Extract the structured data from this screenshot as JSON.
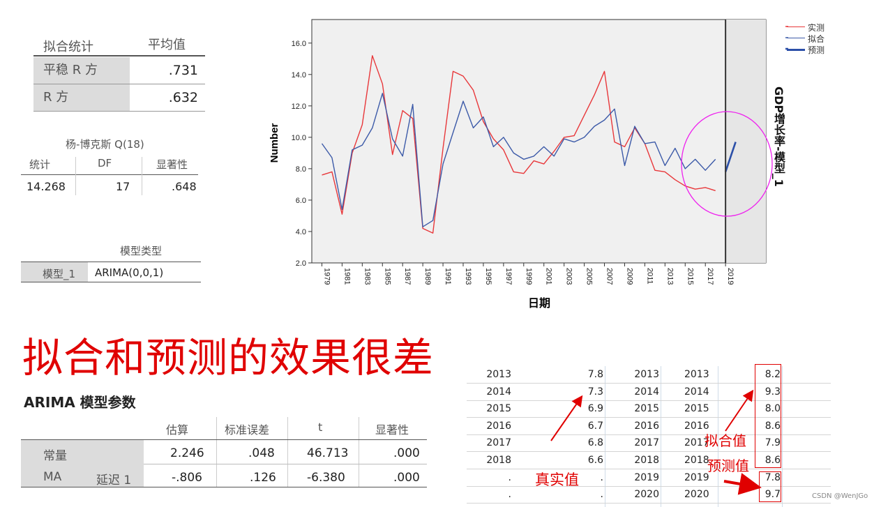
{
  "fit_stats": {
    "header_label": "拟合统计",
    "header_value": "平均值",
    "rows": [
      {
        "label": "平稳 R 方",
        "value": ".731"
      },
      {
        "label": "R 方",
        "value": ".632"
      }
    ]
  },
  "ljung_box": {
    "title": "杨-博克斯 Q(18)",
    "headers": [
      "统计",
      "DF",
      "显著性"
    ],
    "values": [
      "14.268",
      "17",
      ".648"
    ]
  },
  "model_type": {
    "header": "模型类型",
    "model": "模型_1",
    "type": "ARIMA(0,0,1)"
  },
  "headline": "拟合和预测的效果很差",
  "arima_params": {
    "title": "ARIMA 模型参数",
    "headers": [
      "估算",
      "标准误差",
      "t",
      "显著性"
    ],
    "rows": [
      {
        "label": "常量",
        "sub": "",
        "values": [
          "2.246",
          ".048",
          "46.713",
          ".000"
        ]
      },
      {
        "label": "MA",
        "sub": "延迟 1",
        "values": [
          "-.806",
          ".126",
          "-6.380",
          ".000"
        ]
      }
    ]
  },
  "sheet": {
    "rows": [
      [
        "2013",
        "7.8",
        "2013",
        "2013",
        "8.2"
      ],
      [
        "2014",
        "7.3",
        "2014",
        "2014",
        "9.3"
      ],
      [
        "2015",
        "6.9",
        "2015",
        "2015",
        "8.0"
      ],
      [
        "2016",
        "6.7",
        "2016",
        "2016",
        "8.6"
      ],
      [
        "2017",
        "6.8",
        "2017",
        "2017",
        "7.9"
      ],
      [
        "2018",
        "6.6",
        "2018",
        "2018",
        "8.6"
      ],
      [
        ".",
        ".",
        "2019",
        "2019",
        "7.8"
      ],
      [
        ".",
        ".",
        "2020",
        "2020",
        "9.7"
      ]
    ],
    "annotations": {
      "actual": "真实值",
      "fitted": "拟合值",
      "forecast": "预测值"
    }
  },
  "watermark": "CSDN @WenJGo",
  "colors": {
    "actual": "#e8373a",
    "fit": "#3c5aa8",
    "forecast": "#2b4fa8",
    "plot_bg": "#f0f0f0",
    "circle": "#ee22ee",
    "annot": "#e00000"
  },
  "chart_data": {
    "type": "line",
    "xlabel": "日期",
    "ylabel": "Number",
    "right_label": "GDP增长率-模型_1",
    "ylim": [
      2.0,
      17.5
    ],
    "yticks": [
      "2.0",
      "4.0",
      "6.0",
      "8.0",
      "10.0",
      "12.0",
      "14.0",
      "16.0"
    ],
    "xlim": [
      1978,
      2023
    ],
    "xticks": [
      "1979",
      "1981",
      "1983",
      "1985",
      "1987",
      "1989",
      "1991",
      "1993",
      "1995",
      "1997",
      "1999",
      "2001",
      "2003",
      "2005",
      "2007",
      "2009",
      "2011",
      "2013",
      "2015",
      "2017",
      "2019"
    ],
    "forecast_start": 2019,
    "legend": [
      "实测",
      "拟合",
      "预测"
    ],
    "legend_position": "top-right",
    "series": [
      {
        "name": "实测",
        "x": [
          1979,
          1980,
          1981,
          1982,
          1983,
          1984,
          1985,
          1986,
          1987,
          1988,
          1989,
          1990,
          1991,
          1992,
          1993,
          1994,
          1995,
          1996,
          1997,
          1998,
          1999,
          2000,
          2001,
          2002,
          2003,
          2004,
          2005,
          2006,
          2007,
          2008,
          2009,
          2010,
          2011,
          2012,
          2013,
          2014,
          2015,
          2016,
          2017,
          2018
        ],
        "values": [
          7.6,
          7.8,
          5.1,
          9.0,
          10.8,
          15.2,
          13.4,
          8.9,
          11.7,
          11.2,
          4.2,
          3.9,
          9.3,
          14.2,
          13.9,
          13.0,
          11.0,
          9.9,
          9.2,
          7.8,
          7.7,
          8.5,
          8.3,
          9.1,
          10.0,
          10.1,
          11.4,
          12.7,
          14.2,
          9.7,
          9.4,
          10.6,
          9.6,
          7.9,
          7.8,
          7.3,
          6.9,
          6.7,
          6.8,
          6.6
        ]
      },
      {
        "name": "拟合",
        "x": [
          1979,
          1980,
          1981,
          1982,
          1983,
          1984,
          1985,
          1986,
          1987,
          1988,
          1989,
          1990,
          1991,
          1992,
          1993,
          1994,
          1995,
          1996,
          1997,
          1998,
          1999,
          2000,
          2001,
          2002,
          2003,
          2004,
          2005,
          2006,
          2007,
          2008,
          2009,
          2010,
          2011,
          2012,
          2013,
          2014,
          2015,
          2016,
          2017,
          2018
        ],
        "values": [
          9.6,
          8.7,
          5.4,
          9.2,
          9.5,
          10.6,
          12.8,
          9.9,
          8.8,
          12.1,
          4.3,
          4.7,
          8.3,
          10.3,
          12.3,
          10.6,
          11.3,
          9.4,
          10.0,
          9.0,
          8.6,
          8.8,
          9.4,
          8.8,
          9.9,
          9.7,
          10.0,
          10.7,
          11.1,
          11.8,
          8.2,
          10.7,
          9.6,
          9.7,
          8.2,
          9.3,
          8.0,
          8.6,
          7.9,
          8.6
        ]
      },
      {
        "name": "预测",
        "x": [
          2019,
          2020
        ],
        "values": [
          7.8,
          9.7
        ]
      }
    ]
  }
}
